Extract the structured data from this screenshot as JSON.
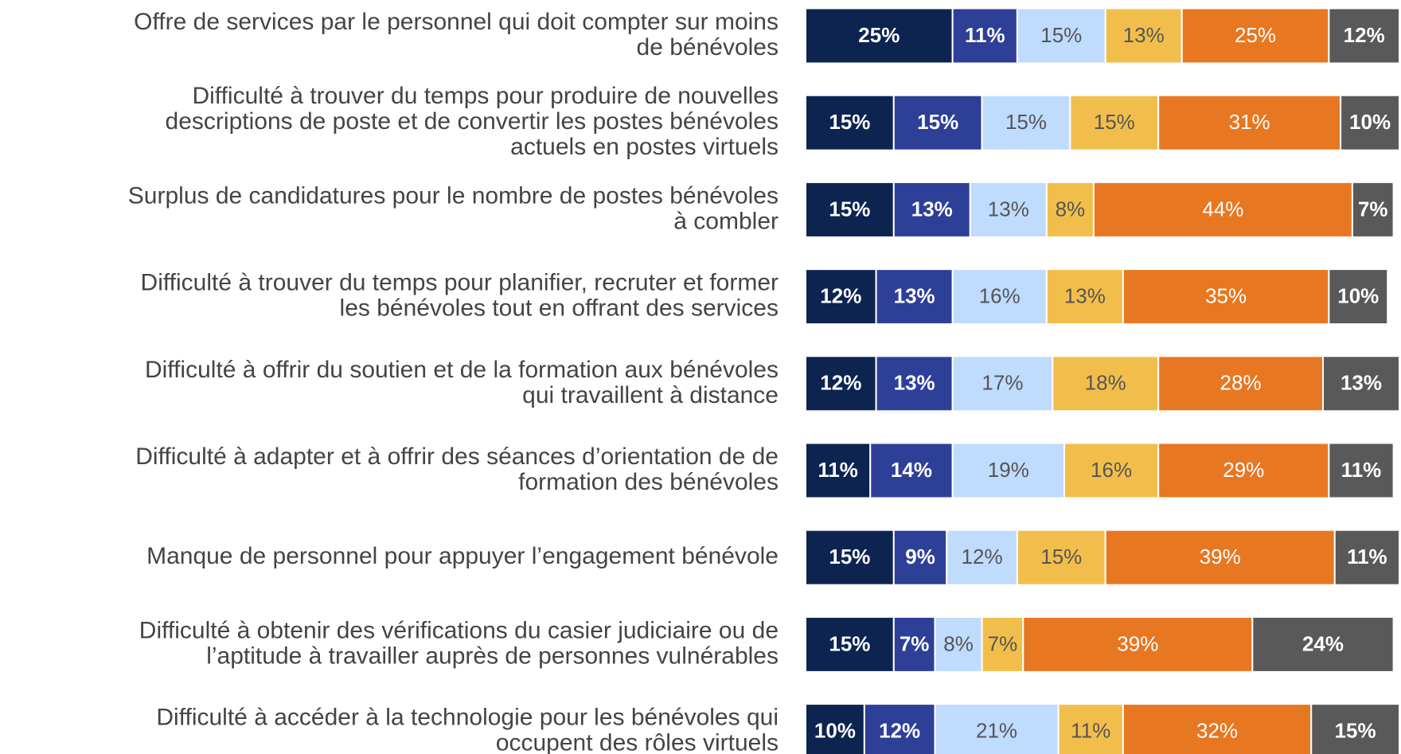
{
  "chart_data": {
    "type": "stacked-bar-horizontal",
    "categories": [
      "Offre de services par le personnel qui doit compter sur moins\nde bénévoles",
      "Difficulté à trouver du temps pour produire de nouvelles\ndescriptions de poste et de convertir les postes bénévoles\nactuels en postes virtuels",
      "Surplus de candidatures pour le nombre de postes bénévoles\nà combler",
      "Difficulté à trouver du temps pour planifier, recruter et former\nles bénévoles tout en offrant des services",
      "Difficulté à offrir du soutien et de la formation aux bénévoles\nqui travaillent à distance",
      "Difficulté à adapter et à offrir des séances d’orientation de de\nformation des bénévoles",
      "Manque de personnel pour appuyer l’engagement bénévole",
      "Difficulté à obtenir des vérifications du casier judiciaire  ou de\nl’aptitude à travailler auprès de personnes vulnérables",
      "Difficulté à accéder à la technologie pour les bénévoles qui\noccupent des rôles virtuels"
    ],
    "series": [
      {
        "color": "#0d2451",
        "label_color": "#ffffff",
        "label_bold": true,
        "values": [
          25,
          15,
          15,
          12,
          12,
          11,
          15,
          15,
          10
        ],
        "value_labels": [
          "25%",
          "15%",
          "15%",
          "12%",
          "12%",
          "11%",
          "15%",
          "15%",
          "10%"
        ]
      },
      {
        "color": "#2e3f98",
        "label_color": "#ffffff",
        "label_bold": true,
        "values": [
          11,
          15,
          13,
          13,
          13,
          14,
          9,
          7,
          12
        ],
        "value_labels": [
          "11%",
          "15%",
          "13%",
          "13%",
          "13%",
          "14%",
          "9%",
          "7%",
          "12%"
        ]
      },
      {
        "color": "#bfdbfd",
        "label_color": "#555555",
        "label_bold": false,
        "values": [
          15,
          15,
          13,
          16,
          17,
          19,
          12,
          8,
          21
        ],
        "value_labels": [
          "15%",
          "15%",
          "13%",
          "16%",
          "17%",
          "19%",
          "12%",
          "8%",
          "21%"
        ]
      },
      {
        "color": "#f2be4b",
        "label_color": "#555555",
        "label_bold": false,
        "values": [
          13,
          15,
          8,
          13,
          18,
          16,
          15,
          7,
          11
        ],
        "value_labels": [
          "13%",
          "15%",
          "8%",
          "13%",
          "18%",
          "16%",
          "15%",
          "7%",
          "11%"
        ]
      },
      {
        "color": "#e87722",
        "label_color": "#ffffff",
        "label_bold": false,
        "values": [
          25,
          31,
          44,
          35,
          28,
          29,
          39,
          39,
          32
        ],
        "value_labels": [
          "25%",
          "31%",
          "44%",
          "35%",
          "28%",
          "29%",
          "39%",
          "39%",
          "32%"
        ]
      },
      {
        "color": "#595959",
        "label_color": "#ffffff",
        "label_bold": true,
        "values": [
          12,
          10,
          7,
          10,
          13,
          11,
          11,
          24,
          15
        ],
        "value_labels": [
          "12%",
          "10%",
          "7%",
          "10%",
          "13%",
          "11%",
          "11%",
          "24%",
          "15%"
        ]
      }
    ]
  }
}
